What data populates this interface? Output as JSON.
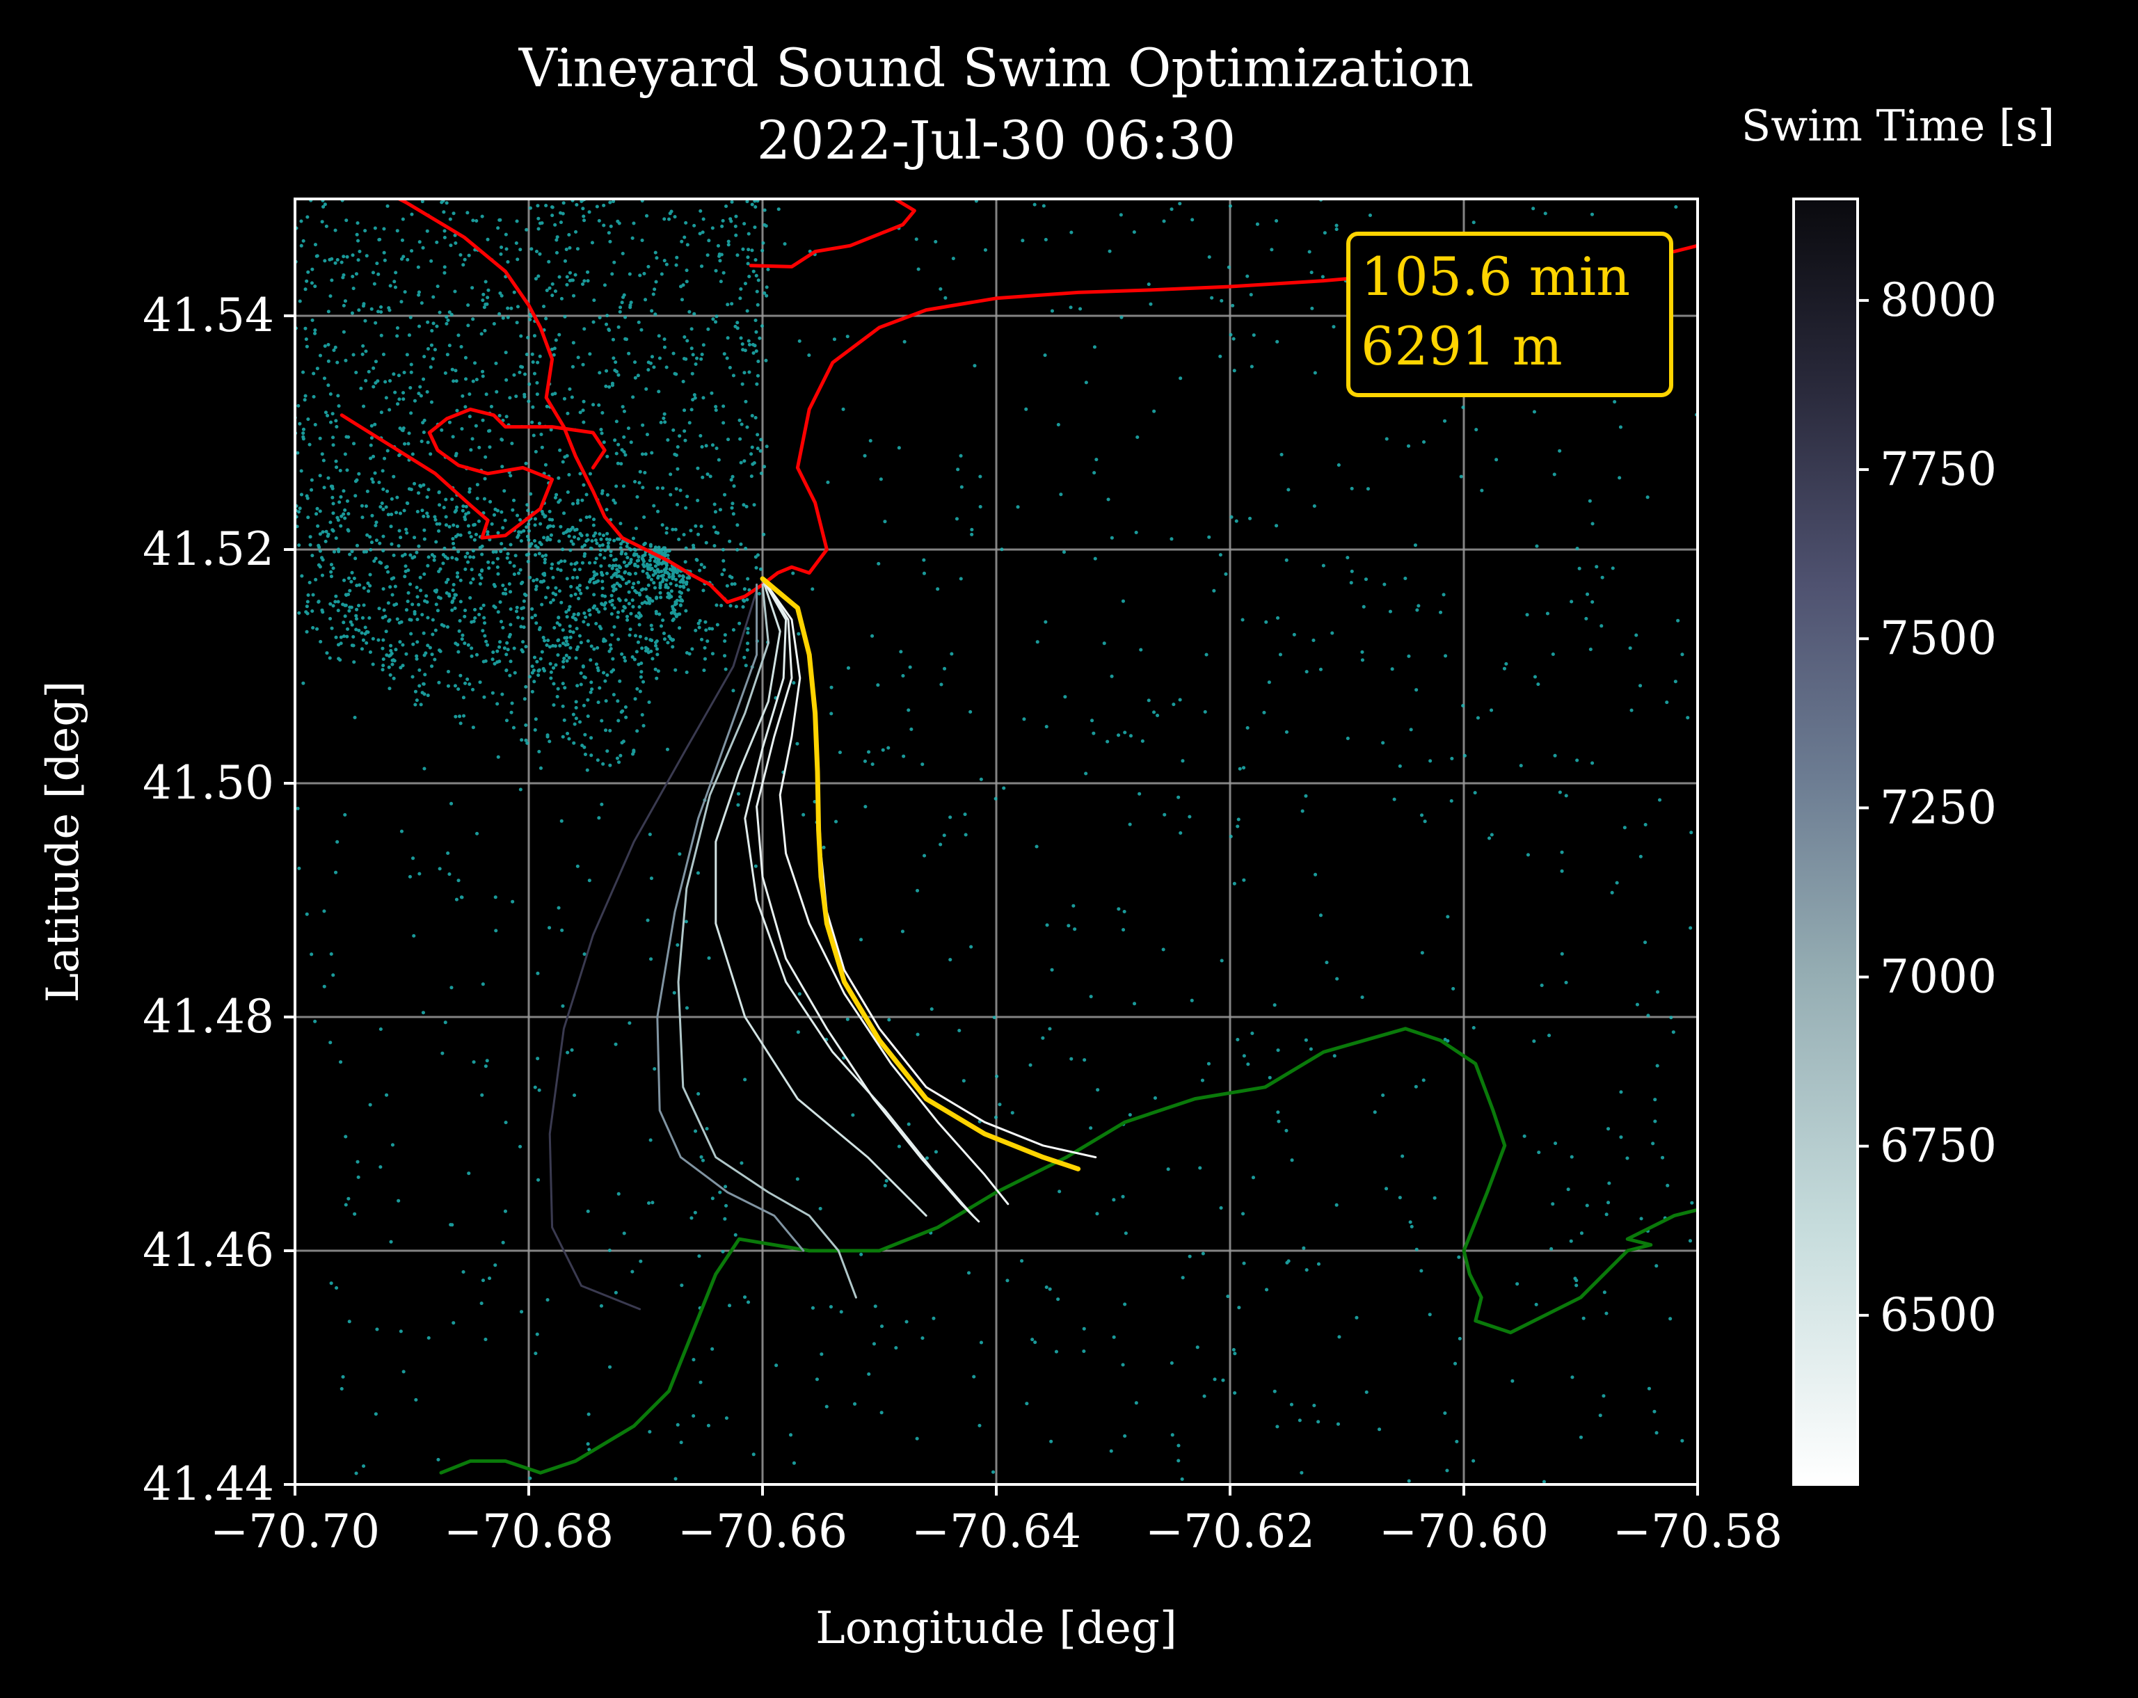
{
  "chart_data": {
    "type": "line",
    "title": "Vineyard Sound Swim Optimization",
    "subtitle": "2022-Jul-30 06:30",
    "xlabel": "Longitude [deg]",
    "ylabel": "Latitude [deg]",
    "xlim": [
      -70.7,
      -70.58
    ],
    "ylim": [
      41.44,
      41.55
    ],
    "xticks": [
      -70.7,
      -70.68,
      -70.66,
      -70.64,
      -70.62,
      -70.6,
      -70.58
    ],
    "xtick_labels": [
      "−70.70",
      "−70.68",
      "−70.66",
      "−70.64",
      "−70.62",
      "−70.60",
      "−70.58"
    ],
    "yticks": [
      41.44,
      41.46,
      41.48,
      41.5,
      41.52,
      41.54
    ],
    "ytick_labels": [
      "41.44",
      "41.46",
      "41.48",
      "41.50",
      "41.52",
      "41.54"
    ],
    "grid": true,
    "annotation": {
      "line1": "105.6 min",
      "line2": "6291 m",
      "placement": "top-right",
      "color": "#ffd400"
    },
    "colorbar": {
      "label": "Swim Time [s]",
      "range": [
        6250,
        8150
      ],
      "ticks": [
        6500,
        6750,
        7000,
        7250,
        7500,
        7750,
        8000
      ],
      "tick_labels": [
        "6500",
        "6750",
        "7000",
        "7250",
        "7500",
        "7750",
        "8000"
      ],
      "colormap": "bone_r"
    },
    "north_coast": {
      "color": "#ff0000",
      "x": [
        -70.695,
        -70.6905,
        -70.6855,
        -70.682,
        -70.68,
        -70.679,
        -70.678,
        -70.6785,
        -70.677,
        -70.676,
        -70.6745,
        -70.6735,
        -70.672,
        -70.67,
        -70.668,
        -70.666,
        -70.6645,
        -70.663,
        -70.6615,
        -70.66,
        -70.6587,
        -70.6575,
        -70.656,
        -70.6545,
        -70.6555,
        -70.657,
        -70.656,
        -70.654,
        -70.65,
        -70.646,
        -70.64,
        -70.633,
        -70.627,
        -70.62,
        -70.612,
        -70.605,
        -70.599,
        -70.593,
        -70.587,
        -70.582,
        -70.58
      ],
      "y": [
        41.552,
        41.5497,
        41.5467,
        41.5438,
        41.5409,
        41.539,
        41.5363,
        41.533,
        41.5305,
        41.528,
        41.525,
        41.5228,
        41.521,
        41.52,
        41.519,
        41.5178,
        41.517,
        41.5155,
        41.516,
        41.517,
        41.518,
        41.5185,
        41.518,
        41.52,
        41.524,
        41.527,
        41.532,
        41.536,
        41.539,
        41.5405,
        41.5415,
        41.542,
        41.5422,
        41.5425,
        41.543,
        41.5436,
        41.5442,
        41.5448,
        41.5453,
        41.5455,
        41.546
      ]
    },
    "north_coast_inlet": {
      "color": "#ff0000",
      "x": [
        -70.696,
        -70.692,
        -70.688,
        -70.685,
        -70.6835,
        -70.684,
        -70.682,
        -70.679,
        -70.678,
        -70.6805,
        -70.6835,
        -70.686,
        -70.6878,
        -70.6885,
        -70.687,
        -70.685,
        -70.683,
        -70.682,
        -70.678,
        -70.6745,
        -70.6735,
        -70.6745
      ],
      "y": [
        41.5315,
        41.529,
        41.5265,
        41.5238,
        41.5225,
        41.521,
        41.5212,
        41.5235,
        41.526,
        41.527,
        41.5265,
        41.5272,
        41.5285,
        41.53,
        41.5312,
        41.532,
        41.5315,
        41.5305,
        41.5305,
        41.53,
        41.5285,
        41.527
      ]
    },
    "north_coast_island": {
      "color": "#ff0000",
      "x": [
        -70.661,
        -70.6575,
        -70.6555,
        -70.6525,
        -70.65,
        -70.648,
        -70.647,
        -70.65,
        -70.654,
        -70.658,
        -70.661
      ],
      "y": [
        41.5443,
        41.5442,
        41.5455,
        41.546,
        41.547,
        41.5478,
        41.549,
        41.5508,
        41.552,
        41.553,
        41.554
      ]
    },
    "south_coast": {
      "color": "#0a7a0a",
      "x": [
        -70.6875,
        -70.685,
        -70.682,
        -70.679,
        -70.676,
        -70.671,
        -70.668,
        -70.666,
        -70.664,
        -70.662,
        -70.656,
        -70.65,
        -70.645,
        -70.64,
        -70.634,
        -70.629,
        -70.623,
        -70.617,
        -70.612,
        -70.605,
        -70.602,
        -70.599,
        -70.5975,
        -70.5965,
        -70.598,
        -70.6,
        -70.5995,
        -70.5985,
        -70.599,
        -70.596,
        -70.59,
        -70.586,
        -70.584,
        -70.586,
        -70.582,
        -70.58
      ],
      "y": [
        41.441,
        41.442,
        41.442,
        41.441,
        41.442,
        41.445,
        41.448,
        41.453,
        41.458,
        41.461,
        41.46,
        41.46,
        41.462,
        41.465,
        41.468,
        41.471,
        41.473,
        41.474,
        41.477,
        41.479,
        41.478,
        41.476,
        41.472,
        41.469,
        41.465,
        41.46,
        41.458,
        41.456,
        41.454,
        41.453,
        41.456,
        41.46,
        41.4605,
        41.461,
        41.463,
        41.4635
      ]
    },
    "optimal_path": {
      "color": "#ffd400",
      "x": [
        -70.66,
        -70.657,
        -70.656,
        -70.6555,
        -70.6553,
        -70.6552,
        -70.655,
        -70.6545,
        -70.653,
        -70.65,
        -70.646,
        -70.641,
        -70.636,
        -70.633
      ],
      "y": [
        41.5175,
        41.515,
        41.511,
        41.506,
        41.501,
        41.496,
        41.492,
        41.488,
        41.483,
        41.478,
        41.473,
        41.47,
        41.468,
        41.467
      ]
    },
    "paths": [
      {
        "swim_time": 6300,
        "x": [
          -70.66,
          -70.657,
          -70.656,
          -70.6555,
          -70.6553,
          -70.655,
          -70.6545,
          -70.653,
          -70.65,
          -70.646,
          -70.641,
          -70.636,
          -70.6315
        ],
        "y": [
          41.5175,
          41.515,
          41.511,
          41.506,
          41.5,
          41.494,
          41.489,
          41.484,
          41.479,
          41.474,
          41.471,
          41.469,
          41.468
        ]
      },
      {
        "swim_time": 6350,
        "x": [
          -70.66,
          -70.6575,
          -70.6568,
          -70.6575,
          -70.6585,
          -70.658,
          -70.656,
          -70.653,
          -70.649,
          -70.645,
          -70.641,
          -70.639
        ],
        "y": [
          41.5175,
          41.514,
          41.509,
          41.504,
          41.499,
          41.494,
          41.488,
          41.482,
          41.476,
          41.471,
          41.4665,
          41.464
        ]
      },
      {
        "swim_time": 6400,
        "x": [
          -70.66,
          -70.6578,
          -70.6575,
          -70.659,
          -70.6605,
          -70.66,
          -70.658,
          -70.6545,
          -70.6505,
          -70.6465,
          -70.643,
          -70.6415
        ],
        "y": [
          41.5175,
          41.514,
          41.509,
          41.504,
          41.498,
          41.492,
          41.485,
          41.479,
          41.473,
          41.468,
          41.464,
          41.4625
        ]
      },
      {
        "swim_time": 6450,
        "x": [
          -70.66,
          -70.658,
          -70.6582,
          -70.66,
          -70.6615,
          -70.6605,
          -70.658,
          -70.654,
          -70.6495,
          -70.6455,
          -70.642
        ],
        "y": [
          41.5175,
          41.514,
          41.509,
          41.503,
          41.497,
          41.49,
          41.483,
          41.477,
          41.472,
          41.467,
          41.463
        ]
      },
      {
        "swim_time": 6550,
        "x": [
          -70.66,
          -70.6585,
          -70.6595,
          -70.662,
          -70.664,
          -70.664,
          -70.6615,
          -70.657,
          -70.651,
          -70.646
        ],
        "y": [
          41.5175,
          41.513,
          41.507,
          41.501,
          41.495,
          41.488,
          41.48,
          41.473,
          41.468,
          41.463
        ]
      },
      {
        "swim_time": 6800,
        "x": [
          -70.66,
          -70.6595,
          -70.6615,
          -70.6645,
          -70.6665,
          -70.6672,
          -70.6668,
          -70.664,
          -70.6595,
          -70.656,
          -70.6535,
          -70.652
        ],
        "y": [
          41.517,
          41.512,
          41.506,
          41.499,
          41.491,
          41.483,
          41.474,
          41.468,
          41.465,
          41.463,
          41.46,
          41.456
        ]
      },
      {
        "swim_time": 7150,
        "x": [
          -70.6605,
          -70.6605,
          -70.663,
          -70.6655,
          -70.6675,
          -70.669,
          -70.6688,
          -70.667,
          -70.663,
          -70.659,
          -70.6565
        ],
        "y": [
          41.517,
          41.511,
          41.504,
          41.497,
          41.489,
          41.48,
          41.472,
          41.468,
          41.465,
          41.463,
          41.46
        ]
      },
      {
        "swim_time": 7850,
        "x": [
          -70.6605,
          -70.6625,
          -70.6665,
          -70.671,
          -70.6745,
          -70.677,
          -70.6782,
          -70.678,
          -70.6755,
          -70.6705
        ],
        "y": [
          41.5165,
          41.51,
          41.503,
          41.495,
          41.487,
          41.479,
          41.47,
          41.462,
          41.457,
          41.455
        ]
      }
    ]
  }
}
